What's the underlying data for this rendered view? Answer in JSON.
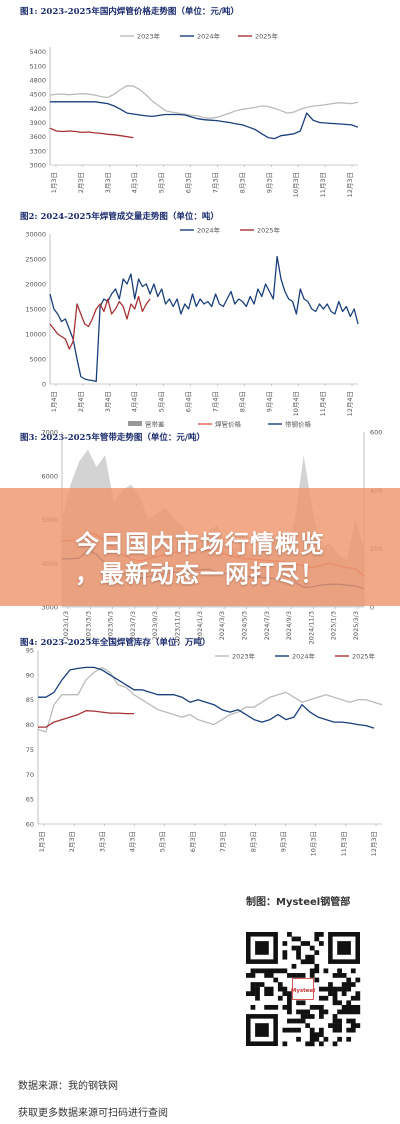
{
  "chart_data": [
    {
      "type": "line",
      "title": "图1: 2023-2025年国内焊管价格走势图（单位：元/吨）",
      "xlabel": "",
      "ylabel": "",
      "ylim": [
        3000,
        5500
      ],
      "yticks": [
        3000,
        3300,
        3600,
        3900,
        4200,
        4500,
        4800,
        5100,
        5400
      ],
      "x_tick_labels": [
        "1月3日",
        "2月3日",
        "3月3日",
        "4月3日",
        "5月3日",
        "6月3日",
        "7月3日",
        "8月3日",
        "9月3日",
        "10月3日",
        "11月3日",
        "12月3日"
      ],
      "legend": [
        "2023年",
        "2024年",
        "2025年"
      ],
      "series": [
        {
          "name": "2023年",
          "color": "#bbbbbb",
          "values": [
            4480,
            4500,
            4500,
            4490,
            4500,
            4510,
            4500,
            4480,
            4450,
            4430,
            4500,
            4600,
            4680,
            4670,
            4600,
            4480,
            4350,
            4250,
            4150,
            4120,
            4100,
            4080,
            4050,
            4040,
            4000,
            3990,
            4010,
            4050,
            4100,
            4150,
            4180,
            4200,
            4220,
            4250,
            4240,
            4200,
            4150,
            4100,
            4120,
            4180,
            4220,
            4250,
            4260,
            4280,
            4300,
            4320,
            4310,
            4300,
            4330
          ]
        },
        {
          "name": "2024年",
          "color": "#1a3f7a",
          "values": [
            4340,
            4340,
            4340,
            4340,
            4340,
            4340,
            4340,
            4340,
            4320,
            4300,
            4250,
            4180,
            4100,
            4080,
            4060,
            4040,
            4030,
            4050,
            4070,
            4070,
            4070,
            4060,
            4020,
            3980,
            3960,
            3950,
            3940,
            3920,
            3900,
            3870,
            3850,
            3800,
            3750,
            3660,
            3580,
            3560,
            3620,
            3640,
            3660,
            3720,
            4100,
            3950,
            3900,
            3890,
            3880,
            3870,
            3860,
            3850,
            3800
          ]
        },
        {
          "name": "2025年",
          "color": "#a83235",
          "values": [
            3780,
            3720,
            3710,
            3720,
            3710,
            3690,
            3700,
            3680,
            3670,
            3650,
            3640,
            3620,
            3600,
            3580
          ]
        }
      ]
    },
    {
      "type": "line",
      "title": "图2: 2024-2025年焊管成交量走势图（单位：吨）",
      "ylim": [
        0,
        30000
      ],
      "yticks": [
        0,
        5000,
        10000,
        15000,
        20000,
        25000,
        30000
      ],
      "x_tick_labels": [
        "1月4日",
        "2月4日",
        "3月4日",
        "4月4日",
        "5月4日",
        "6月4日",
        "7月4日",
        "8月4日",
        "9月4日",
        "10月4日",
        "11月4日",
        "12月4日"
      ],
      "legend": [
        "2024年",
        "2025年"
      ],
      "series": [
        {
          "name": "2024年",
          "color": "#1a3f7a",
          "values": [
            18000,
            15000,
            14000,
            12500,
            13000,
            11000,
            9000,
            5000,
            1500,
            1000,
            800,
            700,
            500,
            15500,
            17000,
            16500,
            18000,
            19000,
            17000,
            21000,
            20000,
            22000,
            17000,
            21000,
            19500,
            20000,
            18000,
            20000,
            17500,
            19000,
            16000,
            17000,
            15500,
            17000,
            14000,
            16000,
            15000,
            18000,
            15500,
            17000,
            16000,
            16500,
            15500,
            18000,
            16000,
            15500,
            17000,
            18500,
            16000,
            17000,
            16500,
            15500,
            17500,
            16000,
            19000,
            17500,
            20000,
            18500,
            17000,
            25500,
            21000,
            18500,
            17000,
            16500,
            14000,
            19000,
            17000,
            16500,
            15000,
            14500,
            16000,
            15000,
            16000,
            14500,
            14000,
            16500,
            14500,
            15500,
            13500,
            15000,
            12000
          ]
        },
        {
          "name": "2025年",
          "color": "#a83235",
          "values": [
            12000,
            11000,
            10000,
            9500,
            9000,
            7000,
            8500,
            16000,
            14000,
            12000,
            11500,
            13000,
            15000,
            16000,
            14500,
            17000,
            14000,
            15000,
            16500,
            15500,
            13000,
            16000,
            15000,
            17500,
            14500,
            16000,
            17000
          ]
        }
      ]
    },
    {
      "type": "line",
      "title": "图3: 2023-2025年管带走势图（单位：元/吨）",
      "ylim": [
        3000,
        7000
      ],
      "yticks": [
        3000,
        4000,
        5000,
        6000,
        7000
      ],
      "y2lim": [
        0,
        600
      ],
      "y2ticks": [
        0,
        200,
        400,
        600
      ],
      "x_tick_labels": [
        "2023/1/3",
        "2023/3/3",
        "2023/5/3",
        "2023/7/3",
        "2023/9/3",
        "2023/11/3",
        "2024/1/3",
        "2024/3/3",
        "2024/5/3",
        "2024/7/3",
        "2024/9/3",
        "2024/11/3",
        "2025/1/3",
        "2025/3/3"
      ],
      "legend": [
        "管带差",
        "焊管价格",
        "带钢价格"
      ],
      "series": [
        {
          "name": "管带差",
          "color": "#999999",
          "values": [
            300,
            420,
            500,
            540,
            480,
            520,
            360,
            400,
            420,
            380,
            300,
            320,
            340,
            300,
            280,
            200,
            240,
            260,
            280,
            220,
            200,
            240,
            180,
            200,
            260,
            220,
            180,
            300,
            520,
            340,
            200,
            220,
            180,
            160,
            300,
            200
          ]
        },
        {
          "name": "焊管价格",
          "color": "#e05a5a",
          "values": [
            4500,
            4520,
            4550,
            4700,
            4650,
            4500,
            4350,
            4200,
            4100,
            4050,
            4100,
            4150,
            4200,
            4250,
            4280,
            4300,
            4320,
            4300,
            4250,
            4200,
            4150,
            4100,
            4100,
            4080,
            4060,
            4050,
            4020,
            3980,
            3950,
            3900,
            3950,
            4000,
            3950,
            3900,
            3880,
            3700
          ]
        },
        {
          "name": "带钢价格",
          "color": "#1a3f7a",
          "values": [
            4100,
            4100,
            4120,
            4300,
            4200,
            4000,
            3900,
            3750,
            3700,
            3650,
            3700,
            3720,
            3760,
            3790,
            3800,
            3820,
            3850,
            3860,
            3800,
            3760,
            3720,
            3700,
            3690,
            3680,
            3660,
            3640,
            3600,
            3560,
            3450,
            3460,
            3500,
            3520,
            3520,
            3500,
            3480,
            3420
          ]
        }
      ]
    },
    {
      "type": "line",
      "title": "图4: 2023-2025年全国焊管库存（单位：万吨）",
      "ylim": [
        60,
        95
      ],
      "yticks": [
        60,
        65,
        70,
        75,
        80,
        85,
        90,
        95
      ],
      "x_tick_labels": [
        "1月3日",
        "2月3日",
        "3月3日",
        "4月3日",
        "5月3日",
        "6月3日",
        "7月3日",
        "8月3日",
        "9月3日",
        "10月3日",
        "11月3日",
        "12月3日"
      ],
      "legend": [
        "2023年",
        "2024年",
        "2025年"
      ],
      "series": [
        {
          "name": "2023年",
          "color": "#bbbbbb",
          "values": [
            79.0,
            78.5,
            84.0,
            86.0,
            86.0,
            86.0,
            89.0,
            90.5,
            91.5,
            90.5,
            88.0,
            87.5,
            86.0,
            85.0,
            84.0,
            83.0,
            82.5,
            82.0,
            81.5,
            82.0,
            81.0,
            80.5,
            80.0,
            81.0,
            82.0,
            82.5,
            83.5,
            83.5,
            84.5,
            85.5,
            86.0,
            86.5,
            85.5,
            84.5,
            85.0,
            85.5,
            86.0,
            85.5,
            85.0,
            84.5,
            85.0,
            85.0,
            84.5,
            84.0
          ]
        },
        {
          "name": "2024年",
          "color": "#1a3f7a",
          "values": [
            85.5,
            85.5,
            86.5,
            89.0,
            91.0,
            91.3,
            91.5,
            91.5,
            91.0,
            90.0,
            89.0,
            88.0,
            87.0,
            87.0,
            86.5,
            86.0,
            86.0,
            86.0,
            85.5,
            84.5,
            85.0,
            84.5,
            84.0,
            83.0,
            82.5,
            83.0,
            82.0,
            81.0,
            80.5,
            81.0,
            82.0,
            81.0,
            81.5,
            84.0,
            82.5,
            81.5,
            81.0,
            80.5,
            80.5,
            80.3,
            80.0,
            79.8,
            79.3
          ]
        },
        {
          "name": "2025年",
          "color": "#a83235",
          "values": [
            79.5,
            79.5,
            80.5,
            81.0,
            81.5,
            82.0,
            82.8,
            82.7,
            82.5,
            82.3,
            82.3,
            82.2,
            82.2
          ]
        }
      ]
    }
  ],
  "banner": {
    "line1": "今日国内市场行情概览",
    "line2": "，最新动态一网打尽！"
  },
  "credit": "制图：Mysteel钢管部",
  "qr_label": "Mysteel",
  "footer": {
    "source": "数据来源：我的钢铁网",
    "more": "获取更多数据来源可扫码进行查阅"
  }
}
